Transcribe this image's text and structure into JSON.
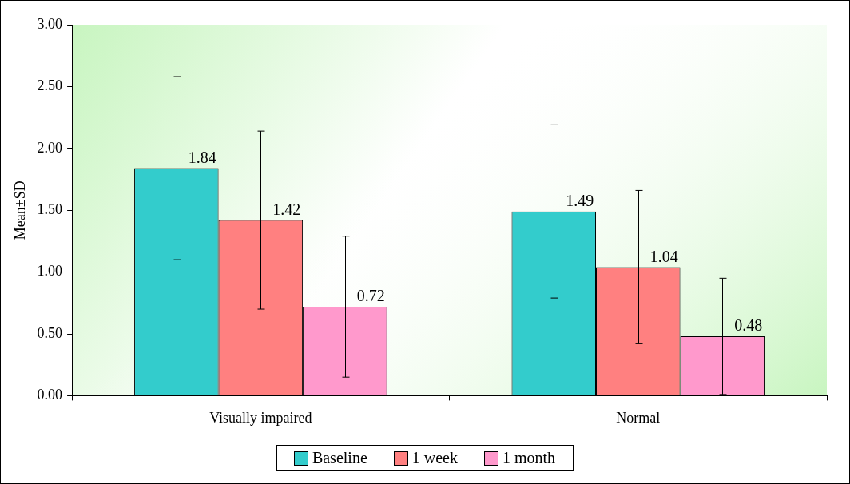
{
  "chart_data": {
    "type": "bar",
    "ylabel": "Mean±SD",
    "categories": [
      "Visually impaired",
      "Normal"
    ],
    "series": [
      {
        "name": "Baseline",
        "color": "#33cccc",
        "values": [
          1.84,
          1.49
        ],
        "errors": [
          0.74,
          0.7
        ]
      },
      {
        "name": "1 week",
        "color": "#ff8080",
        "values": [
          1.42,
          1.04
        ],
        "errors": [
          0.72,
          0.62
        ]
      },
      {
        "name": "1 month",
        "color": "#ff99cc",
        "values": [
          0.72,
          0.48
        ],
        "errors": [
          0.57,
          0.47
        ]
      }
    ],
    "ylim": [
      0,
      3
    ],
    "yticks": [
      {
        "value": 0,
        "label": "0.00"
      },
      {
        "value": 0.5,
        "label": "0.50"
      },
      {
        "value": 1,
        "label": "1.00"
      },
      {
        "value": 1.5,
        "label": "1.50"
      },
      {
        "value": 2,
        "label": "2.00"
      },
      {
        "value": 2.5,
        "label": "2.50"
      },
      {
        "value": 3,
        "label": "3.00"
      }
    ],
    "grid": false,
    "legend": "bottom",
    "data_labels": true
  }
}
